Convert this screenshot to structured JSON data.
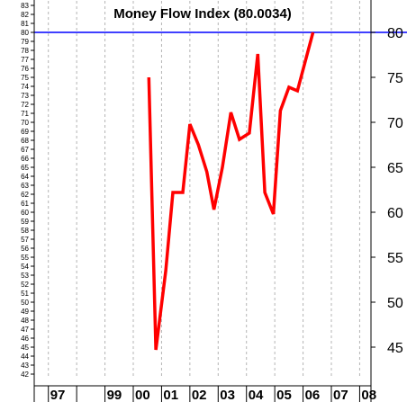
{
  "chart_data": {
    "type": "line",
    "title": "Money Flow Index (80.0034)",
    "series": [
      {
        "color": "#ff0000",
        "points": [
          {
            "x": 2000.55,
            "y": 75.0
          },
          {
            "x": 2000.8,
            "y": 44.7
          },
          {
            "x": 2001.15,
            "y": 53.5
          },
          {
            "x": 2001.4,
            "y": 62.2
          },
          {
            "x": 2001.75,
            "y": 62.2
          },
          {
            "x": 2002.0,
            "y": 69.8
          },
          {
            "x": 2002.3,
            "y": 67.5
          },
          {
            "x": 2002.6,
            "y": 64.5
          },
          {
            "x": 2002.85,
            "y": 60.3
          },
          {
            "x": 2003.15,
            "y": 65.0
          },
          {
            "x": 2003.45,
            "y": 71.1
          },
          {
            "x": 2003.75,
            "y": 68.1
          },
          {
            "x": 2004.1,
            "y": 68.8
          },
          {
            "x": 2004.4,
            "y": 77.6
          },
          {
            "x": 2004.65,
            "y": 62.2
          },
          {
            "x": 2004.95,
            "y": 59.8
          },
          {
            "x": 2005.2,
            "y": 71.3
          },
          {
            "x": 2005.5,
            "y": 73.9
          },
          {
            "x": 2005.8,
            "y": 73.5
          },
          {
            "x": 2006.35,
            "y": 80.0
          }
        ]
      }
    ],
    "reference_line": {
      "value": 80,
      "color": "#0000ff"
    },
    "x_range": [
      1996.5,
      2008.4
    ],
    "y_range": [
      41.5,
      83.5
    ],
    "x_ticks": [
      {
        "label": "97",
        "x": 1997
      },
      {
        "label": "99",
        "x": 1999
      },
      {
        "label": "00",
        "x": 2000
      },
      {
        "label": "01",
        "x": 2001
      },
      {
        "label": "02",
        "x": 2002
      },
      {
        "label": "03",
        "x": 2003
      },
      {
        "label": "04",
        "x": 2004
      },
      {
        "label": "05",
        "x": 2005
      },
      {
        "label": "06",
        "x": 2006
      },
      {
        "label": "07",
        "x": 2007
      },
      {
        "label": "08",
        "x": 2008
      }
    ],
    "y_ticks_left": [
      "42",
      "43",
      "44",
      "45",
      "46",
      "47",
      "48",
      "49",
      "50",
      "51",
      "52",
      "53",
      "54",
      "55",
      "56",
      "57",
      "58",
      "59",
      "60",
      "61",
      "62",
      "63",
      "64",
      "65",
      "66",
      "67",
      "68",
      "69",
      "70",
      "71",
      "72",
      "73",
      "74",
      "75",
      "76",
      "77",
      "78",
      "79",
      "80",
      "81",
      "82",
      "83"
    ],
    "y_ticks_right": [
      "45",
      "50",
      "55",
      "60",
      "65",
      "70",
      "75",
      "80"
    ],
    "grid": "vertical-dashed",
    "colors": {
      "line": "#ff0000",
      "reference": "#0000ff",
      "grid": "#b4b4b4",
      "axis": "#000000",
      "background": "#ffffff"
    }
  }
}
